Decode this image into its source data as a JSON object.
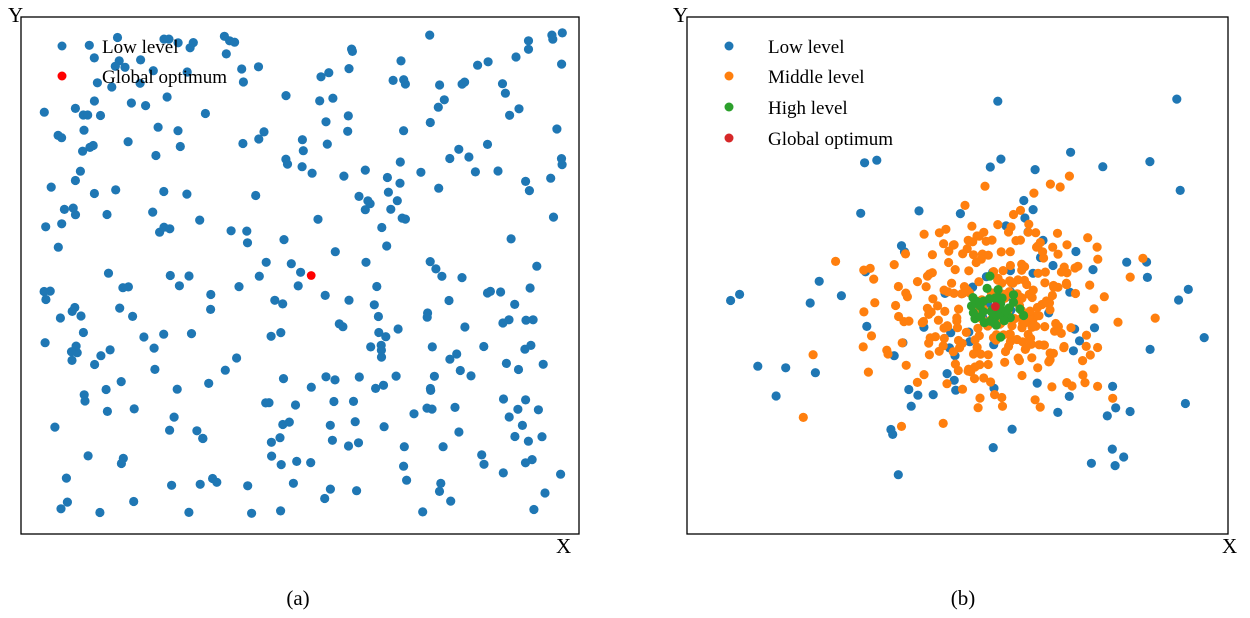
{
  "chart_data": [
    {
      "panel_label": "(a)",
      "type": "scatter",
      "xlabel": "X",
      "ylabel": "Y",
      "xlim": [
        0,
        100
      ],
      "ylim": [
        0,
        100
      ],
      "grid": false,
      "legend": {
        "placement": "top-left",
        "entries": [
          "Low level",
          "Global optimum"
        ]
      },
      "series": [
        {
          "name": "Low level",
          "color": "#1f77b4",
          "distribution": "uniform",
          "count": 330,
          "x_range": [
            4,
            97
          ],
          "y_range": [
            4,
            97
          ]
        },
        {
          "name": "Global optimum",
          "color": "#ff0000",
          "points": [
            [
              52,
              50
            ]
          ]
        }
      ]
    },
    {
      "panel_label": "(b)",
      "type": "scatter",
      "xlabel": "X",
      "ylabel": "Y",
      "xlim": [
        0,
        100
      ],
      "ylim": [
        0,
        100
      ],
      "grid": false,
      "legend": {
        "placement": "top-left",
        "entries": [
          "Low level",
          "Middle level",
          "High level",
          "Global optimum"
        ]
      },
      "series": [
        {
          "name": "Low level",
          "color": "#1f77b4",
          "center": [
            57,
            44
          ],
          "spread": 22,
          "count": 95
        },
        {
          "name": "Middle level",
          "color": "#ff7f0e",
          "center": [
            57,
            44
          ],
          "spread": 11,
          "count": 300
        },
        {
          "name": "High level",
          "color": "#2ca02c",
          "center": [
            57,
            44
          ],
          "spread": 2.2,
          "count": 45
        },
        {
          "name": "Global optimum",
          "color": "#d62728",
          "points": [
            [
              57,
              44
            ]
          ]
        }
      ]
    }
  ]
}
